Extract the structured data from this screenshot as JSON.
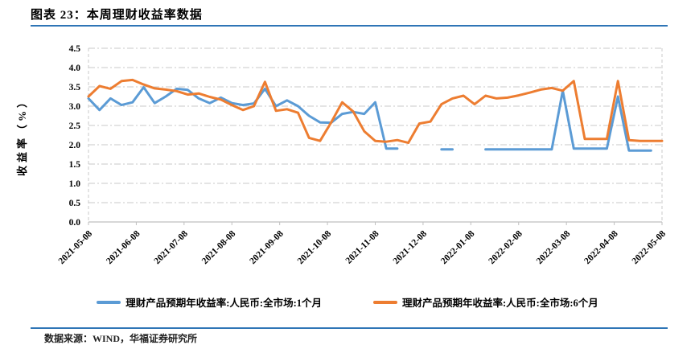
{
  "title": "图表 23：本周理财收益率数据",
  "source": "数据来源：WIND，华福证券研究所",
  "colors": {
    "series_1m": "#5B9BD5",
    "series_6m": "#ED7D31",
    "rule_blue": "#2E75B6",
    "gridline": "#C8C8C8",
    "axis": "#BFBFBF",
    "tick_text": "#000000"
  },
  "chart_data": {
    "type": "line",
    "title": "",
    "xlabel": "",
    "ylabel": "收益率（%）",
    "ylim": [
      0,
      4.5
    ],
    "ytick_step": 0.5,
    "ytick_labels": [
      "0.0",
      "0.5",
      "1.0",
      "1.5",
      "2.0",
      "2.5",
      "3.0",
      "3.5",
      "4.0",
      "4.5"
    ],
    "grid": "horizontal dash-dot",
    "legend_position": "bottom",
    "x_unit": "week",
    "x_tick_labels": [
      "2021-05-08",
      "2021-06-08",
      "2021-07-08",
      "2021-08-08",
      "2021-09-08",
      "2021-10-08",
      "2021-11-08",
      "2021-12-08",
      "2022-01-08",
      "2022-02-08",
      "2022-03-08",
      "2022-04-08",
      "2022-05-08"
    ],
    "series": [
      {
        "name": "理财产品预期年收益率:人民币:全市场:1个月",
        "color": "#5B9BD5",
        "values": [
          3.2,
          2.9,
          3.2,
          3.03,
          3.1,
          3.49,
          3.08,
          3.25,
          3.45,
          3.42,
          3.2,
          3.08,
          3.22,
          3.08,
          3.03,
          3.07,
          3.45,
          3.0,
          3.15,
          3.0,
          2.75,
          2.58,
          2.57,
          2.8,
          2.85,
          2.8,
          3.1,
          1.9,
          1.9,
          null,
          null,
          null,
          1.88,
          1.88,
          null,
          null,
          1.88,
          1.88,
          1.88,
          1.88,
          1.88,
          1.88,
          1.88,
          3.4,
          1.9,
          1.9,
          1.9,
          1.9,
          3.25,
          1.85,
          1.85,
          1.85,
          null
        ]
      },
      {
        "name": "理财产品预期年收益率:人民币:全市场:6个月",
        "color": "#ED7D31",
        "values": [
          3.25,
          3.52,
          3.45,
          3.65,
          3.68,
          3.56,
          3.46,
          3.43,
          3.39,
          3.3,
          3.33,
          3.24,
          3.17,
          3.03,
          2.9,
          3.0,
          3.63,
          2.88,
          2.92,
          2.83,
          2.18,
          2.1,
          2.58,
          3.1,
          2.86,
          2.35,
          2.1,
          2.08,
          2.12,
          2.05,
          2.55,
          2.6,
          3.05,
          3.2,
          3.27,
          3.05,
          3.27,
          3.2,
          3.22,
          3.28,
          3.35,
          3.43,
          3.47,
          3.4,
          3.65,
          2.15,
          2.15,
          2.15,
          3.65,
          2.12,
          2.1,
          2.1,
          2.1
        ]
      }
    ]
  }
}
